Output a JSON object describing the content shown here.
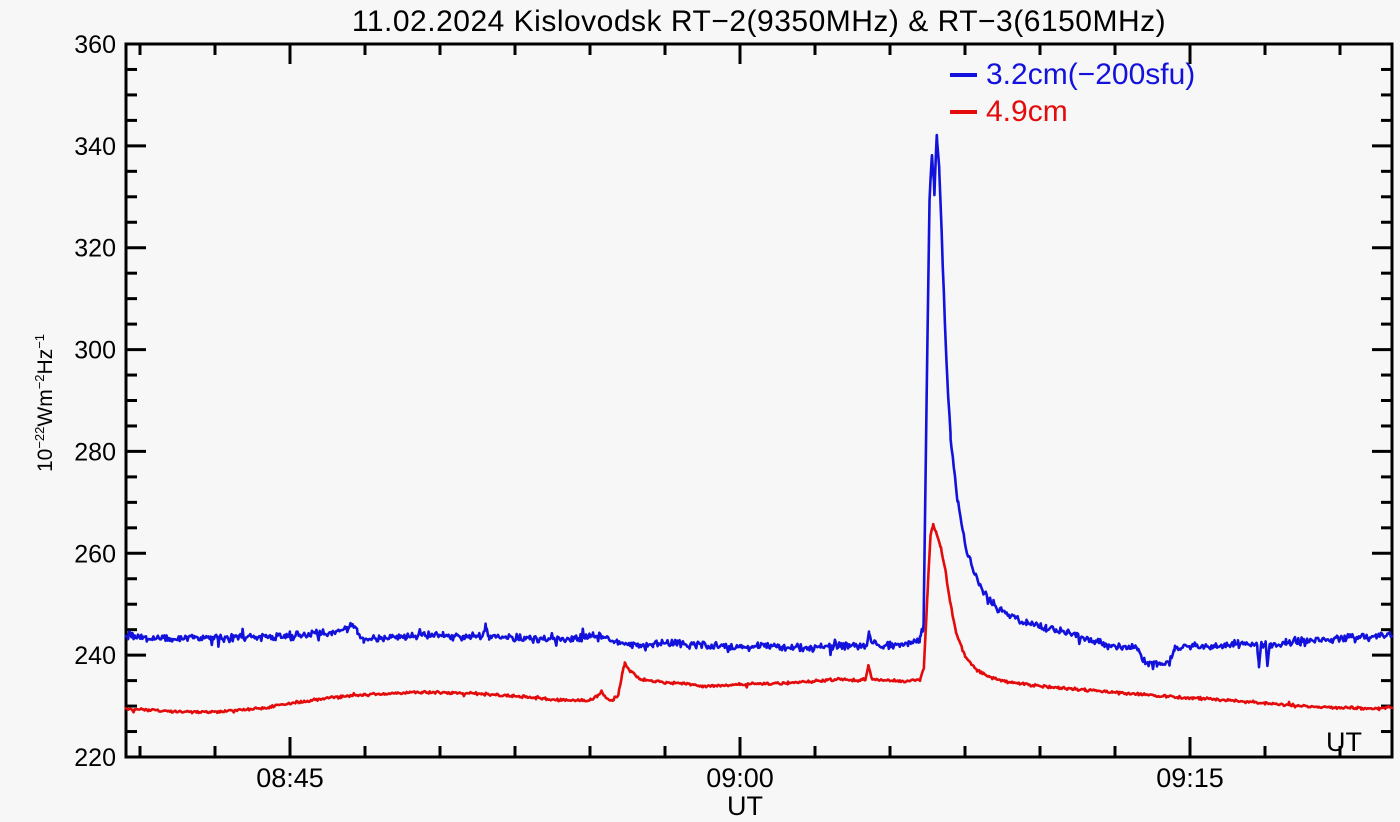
{
  "title": {
    "text": "11.02.2024 Kislovodsk RT−2(9350MHz) & RT−3(6150MHz)"
  },
  "colors": {
    "background": "#f7f7f7",
    "frame": "#000000",
    "blue": "#1212dc",
    "red": "#e30b0b"
  },
  "legend": [
    {
      "label": "3.2cm(−200sfu)",
      "color": "#1212dc"
    },
    {
      "label": "4.9cm",
      "color": "#e30b0b"
    }
  ],
  "y_axis": {
    "label": {
      "b1": "10",
      "s1": "−22",
      "b2": "Wm",
      "s2": "−2",
      "b3": "Hz",
      "s3": "−1"
    },
    "min": 220,
    "max": 360,
    "minor_step": 5,
    "major": [
      {
        "v": 220,
        "label": "220"
      },
      {
        "v": 240,
        "label": "240"
      },
      {
        "v": 260,
        "label": "260"
      },
      {
        "v": 280,
        "label": "280"
      },
      {
        "v": 300,
        "label": "300"
      },
      {
        "v": 320,
        "label": "320"
      },
      {
        "v": 340,
        "label": "340"
      },
      {
        "v": 360,
        "label": "360"
      }
    ]
  },
  "x_axis": {
    "title": "UT",
    "minor_step_minutes": 2.5,
    "range_minutes_after_0800": [
      39.53,
      81.73
    ],
    "major": [
      {
        "t": 45,
        "label": "08:45"
      },
      {
        "t": 60,
        "label": "09:00"
      },
      {
        "t": 75,
        "label": "09:15"
      }
    ]
  },
  "chart_data": {
    "type": "line",
    "title": "11.02.2024 Kislovodsk RT−2(9350MHz) & RT−3(6150MHz)",
    "xlabel": "UT",
    "ylabel": "10^-22 W m^-2 Hz^-1 (sfu)",
    "x_unit": "minutes after 08:00 UT",
    "xlim": [
      39.53,
      81.73
    ],
    "ylim": [
      220,
      360
    ],
    "grid": false,
    "legend_position": "top-right inside",
    "series": [
      {
        "name": "3.2cm(−200sfu)",
        "instrument": "RT-2 9350MHz",
        "color": "#1212dc",
        "noise_amp": 0.9,
        "seed": 20240211,
        "points": [
          [
            39.53,
            243.9
          ],
          [
            40.2,
            243.4
          ],
          [
            41.0,
            243.2
          ],
          [
            41.8,
            243.5
          ],
          [
            42.6,
            243.3
          ],
          [
            43.4,
            243.6
          ],
          [
            44.2,
            243.5
          ],
          [
            45.0,
            243.8
          ],
          [
            45.8,
            244.1
          ],
          [
            46.4,
            244.5
          ],
          [
            46.9,
            245.1
          ],
          [
            47.1,
            246.4
          ],
          [
            47.25,
            244.2
          ],
          [
            47.45,
            243.1
          ],
          [
            48.0,
            243.3
          ],
          [
            48.7,
            243.6
          ],
          [
            49.4,
            243.9
          ],
          [
            50.1,
            244.0
          ],
          [
            50.8,
            243.7
          ],
          [
            51.4,
            243.8
          ],
          [
            51.52,
            246.0
          ],
          [
            51.64,
            243.5
          ],
          [
            52.3,
            243.4
          ],
          [
            53.0,
            243.3
          ],
          [
            53.8,
            243.1
          ],
          [
            54.5,
            243.3
          ],
          [
            55.1,
            243.8
          ],
          [
            55.4,
            243.9
          ],
          [
            55.8,
            242.5
          ],
          [
            56.4,
            242.0
          ],
          [
            57.1,
            242.2
          ],
          [
            57.9,
            242.4
          ],
          [
            58.6,
            242.0
          ],
          [
            59.3,
            241.8
          ],
          [
            60.0,
            241.5
          ],
          [
            60.6,
            241.9
          ],
          [
            61.3,
            241.6
          ],
          [
            62.0,
            241.4
          ],
          [
            62.7,
            241.7
          ],
          [
            63.4,
            241.8
          ],
          [
            64.0,
            241.9
          ],
          [
            64.22,
            242.0
          ],
          [
            64.3,
            244.6
          ],
          [
            64.42,
            242.0
          ],
          [
            65.0,
            241.9
          ],
          [
            65.6,
            242.2
          ],
          [
            66.0,
            242.9
          ],
          [
            66.12,
            246.0
          ],
          [
            66.22,
            290.0
          ],
          [
            66.32,
            330.0
          ],
          [
            66.4,
            338.5
          ],
          [
            66.48,
            331.0
          ],
          [
            66.56,
            342.0
          ],
          [
            66.64,
            336.0
          ],
          [
            66.74,
            320.0
          ],
          [
            66.88,
            298.0
          ],
          [
            67.02,
            283.0
          ],
          [
            67.25,
            270.0
          ],
          [
            67.55,
            260.5
          ],
          [
            67.95,
            254.0
          ],
          [
            68.45,
            250.0
          ],
          [
            68.95,
            247.8
          ],
          [
            69.55,
            246.3
          ],
          [
            70.2,
            245.2
          ],
          [
            70.9,
            244.3
          ],
          [
            71.7,
            243.0
          ],
          [
            72.4,
            241.7
          ],
          [
            73.1,
            241.4
          ],
          [
            73.28,
            241.2
          ],
          [
            73.42,
            238.8
          ],
          [
            73.9,
            238.3
          ],
          [
            74.3,
            238.2
          ],
          [
            74.48,
            241.5
          ],
          [
            75.1,
            241.8
          ],
          [
            75.9,
            241.7
          ],
          [
            76.6,
            241.9
          ],
          [
            77.1,
            242.0
          ],
          [
            77.24,
            242.0
          ],
          [
            77.3,
            237.7
          ],
          [
            77.38,
            242.0
          ],
          [
            77.52,
            242.1
          ],
          [
            77.58,
            237.9
          ],
          [
            77.66,
            242.1
          ],
          [
            78.2,
            242.4
          ],
          [
            78.9,
            242.7
          ],
          [
            79.7,
            243.1
          ],
          [
            80.5,
            243.5
          ],
          [
            81.2,
            243.8
          ],
          [
            81.73,
            244.3
          ]
        ]
      },
      {
        "name": "4.9cm",
        "instrument": "RT-3 6150MHz",
        "color": "#e30b0b",
        "noise_amp": 0.32,
        "seed": 6150,
        "points": [
          [
            39.53,
            229.5
          ],
          [
            40.3,
            229.2
          ],
          [
            41.1,
            228.9
          ],
          [
            41.9,
            228.8
          ],
          [
            42.7,
            229.0
          ],
          [
            43.5,
            229.3
          ],
          [
            44.3,
            229.8
          ],
          [
            45.1,
            230.6
          ],
          [
            45.9,
            231.3
          ],
          [
            46.7,
            231.8
          ],
          [
            47.5,
            232.2
          ],
          [
            48.4,
            232.5
          ],
          [
            49.4,
            232.7
          ],
          [
            50.4,
            232.6
          ],
          [
            51.4,
            232.4
          ],
          [
            52.4,
            232.0
          ],
          [
            53.2,
            231.6
          ],
          [
            54.0,
            231.2
          ],
          [
            54.6,
            231.1
          ],
          [
            55.1,
            231.3
          ],
          [
            55.4,
            232.9
          ],
          [
            55.55,
            231.4
          ],
          [
            55.75,
            231.2
          ],
          [
            55.95,
            232.2
          ],
          [
            56.08,
            236.5
          ],
          [
            56.16,
            238.5
          ],
          [
            56.35,
            236.8
          ],
          [
            56.65,
            235.4
          ],
          [
            57.05,
            234.9
          ],
          [
            57.55,
            234.6
          ],
          [
            58.15,
            234.5
          ],
          [
            58.75,
            233.9
          ],
          [
            59.35,
            234.0
          ],
          [
            60.0,
            234.3
          ],
          [
            60.8,
            234.4
          ],
          [
            61.6,
            234.5
          ],
          [
            62.3,
            234.8
          ],
          [
            62.9,
            235.1
          ],
          [
            63.4,
            235.3
          ],
          [
            63.9,
            235.0
          ],
          [
            64.18,
            235.2
          ],
          [
            64.28,
            238.0
          ],
          [
            64.4,
            235.3
          ],
          [
            65.0,
            235.0
          ],
          [
            65.6,
            234.9
          ],
          [
            66.0,
            235.2
          ],
          [
            66.13,
            237.5
          ],
          [
            66.25,
            252.0
          ],
          [
            66.35,
            263.5
          ],
          [
            66.44,
            265.8
          ],
          [
            66.55,
            263.8
          ],
          [
            66.7,
            261.0
          ],
          [
            66.85,
            256.5
          ],
          [
            67.0,
            250.5
          ],
          [
            67.2,
            244.5
          ],
          [
            67.5,
            239.8
          ],
          [
            67.9,
            237.0
          ],
          [
            68.4,
            235.5
          ],
          [
            69.0,
            234.7
          ],
          [
            69.8,
            234.0
          ],
          [
            70.6,
            233.6
          ],
          [
            71.5,
            233.2
          ],
          [
            72.4,
            232.7
          ],
          [
            73.3,
            232.3
          ],
          [
            74.2,
            231.9
          ],
          [
            75.1,
            231.6
          ],
          [
            75.9,
            231.3
          ],
          [
            76.7,
            230.9
          ],
          [
            77.5,
            230.5
          ],
          [
            78.3,
            230.2
          ],
          [
            79.1,
            229.9
          ],
          [
            79.9,
            229.7
          ],
          [
            80.7,
            229.6
          ],
          [
            81.3,
            229.5
          ],
          [
            81.73,
            229.8
          ]
        ]
      }
    ]
  }
}
